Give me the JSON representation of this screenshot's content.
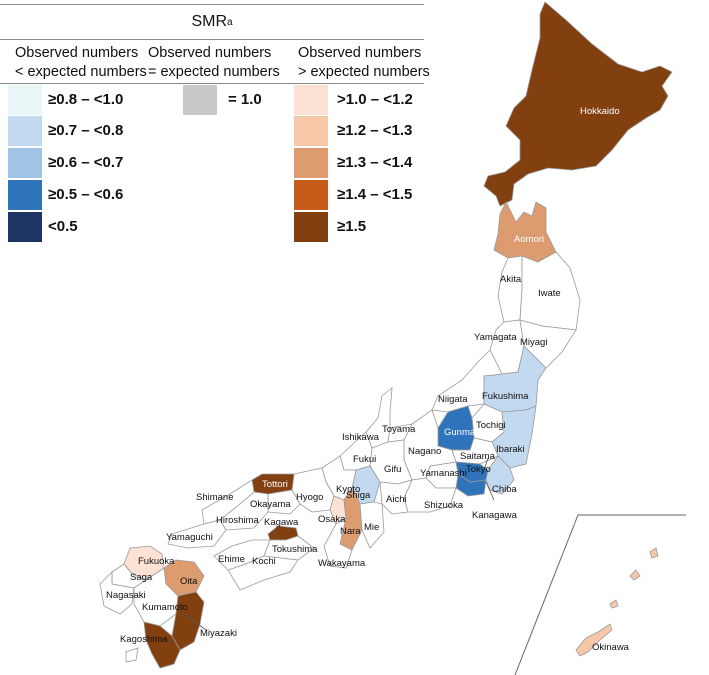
{
  "legend": {
    "title": "SMR",
    "title_superscript": "a",
    "columns": [
      {
        "line1": "Observed numbers",
        "line2": "< expected numbers"
      },
      {
        "line1": "Observed numbers",
        "line2": "= expected numbers"
      },
      {
        "line1": "Observed numbers",
        "line2": "> expected numbers"
      }
    ],
    "lower": [
      {
        "label": "≥0.8 – <1.0",
        "color": "#e8f6f8"
      },
      {
        "label": "≥0.7 – <0.8",
        "color": "#c3d9ef"
      },
      {
        "label": "≥0.6 – <0.7",
        "color": "#9fc4e6"
      },
      {
        "label": "≥0.5 – <0.6",
        "color": "#2f74bb"
      },
      {
        "label": "<0.5",
        "color": "#1c3564"
      }
    ],
    "equal": {
      "label": "= 1.0",
      "color": "#c8c8c8"
    },
    "higher": [
      {
        "label": ">1.0 – <1.2",
        "color": "#fbe2d4"
      },
      {
        "label": "≥1.2 – <1.3",
        "color": "#f6c8a8"
      },
      {
        "label": "≥1.3 – <1.4",
        "color": "#dd9c6f"
      },
      {
        "label": "≥1.4 – <1.5",
        "color": "#c65b1a"
      },
      {
        "label": "≥1.5",
        "color": "#823f10"
      }
    ]
  },
  "map": {
    "prefectures": {
      "hokkaido": "Hokkaido",
      "aomori": "Aomori",
      "akita": "Akita",
      "iwate": "Iwate",
      "yamagata": "Yamagata",
      "miyagi": "Miyagi",
      "niigata": "Niigata",
      "fukushima": "Fukushima",
      "toyama": "Toyama",
      "ishikawa": "Ishikawa",
      "gunma": "Gunma",
      "tochigi": "Tochigi",
      "fukui": "Fukui",
      "nagano": "Nagano",
      "saitama": "Saitama",
      "ibaraki": "Ibaraki",
      "gifu": "Gifu",
      "yamanashi": "Yamanashi",
      "tokyo": "Tokyo",
      "tottori": "Tottori",
      "kyoto": "Kyoto",
      "shiga": "Shiga",
      "chiba": "Chiba",
      "shimane": "Shimane",
      "hyogo": "Hyogo",
      "aichi": "Aichi",
      "okayama": "Okayama",
      "shizuoka": "Shizuoka",
      "kanagawa": "Kanagawa",
      "hiroshima": "Hiroshima",
      "kagawa": "Kagawa",
      "osaka": "Osaka",
      "mie": "Mie",
      "yamaguchi": "Yamaguchi",
      "tokushima": "Tokushima",
      "nara": "Nara",
      "fukuoka": "Fukuoka",
      "ehime": "Ehime",
      "kochi": "Kochi",
      "wakayama": "Wakayama",
      "saga": "Saga",
      "oita": "Oita",
      "nagasaki": "Nagasaki",
      "kumamoto": "Kumamoto",
      "miyazaki": "Miyazaki",
      "kagoshima": "Kagoshima",
      "okinawa": "Okinawa"
    }
  }
}
